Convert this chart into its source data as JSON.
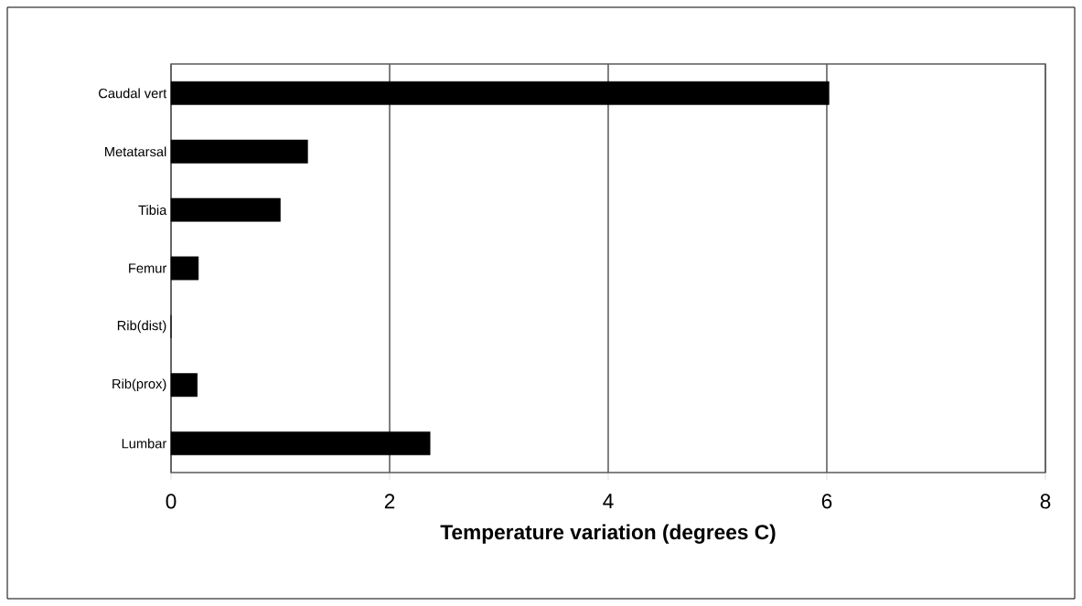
{
  "chart_data": {
    "type": "bar",
    "orientation": "horizontal",
    "xlabel": "Temperature variation (degrees C)",
    "categories": [
      "Caudal vert",
      "Metatarsal",
      "Tibia",
      "Femur",
      "Rib(dist)",
      "Rib(prox)",
      "Lumbar"
    ],
    "values": [
      6.02,
      1.25,
      1.0,
      0.25,
      0,
      0.24,
      2.37
    ],
    "color": "#000000",
    "xlim": [
      0,
      8
    ],
    "xticks": [
      0,
      2,
      4,
      6,
      8
    ],
    "grid": "x"
  }
}
